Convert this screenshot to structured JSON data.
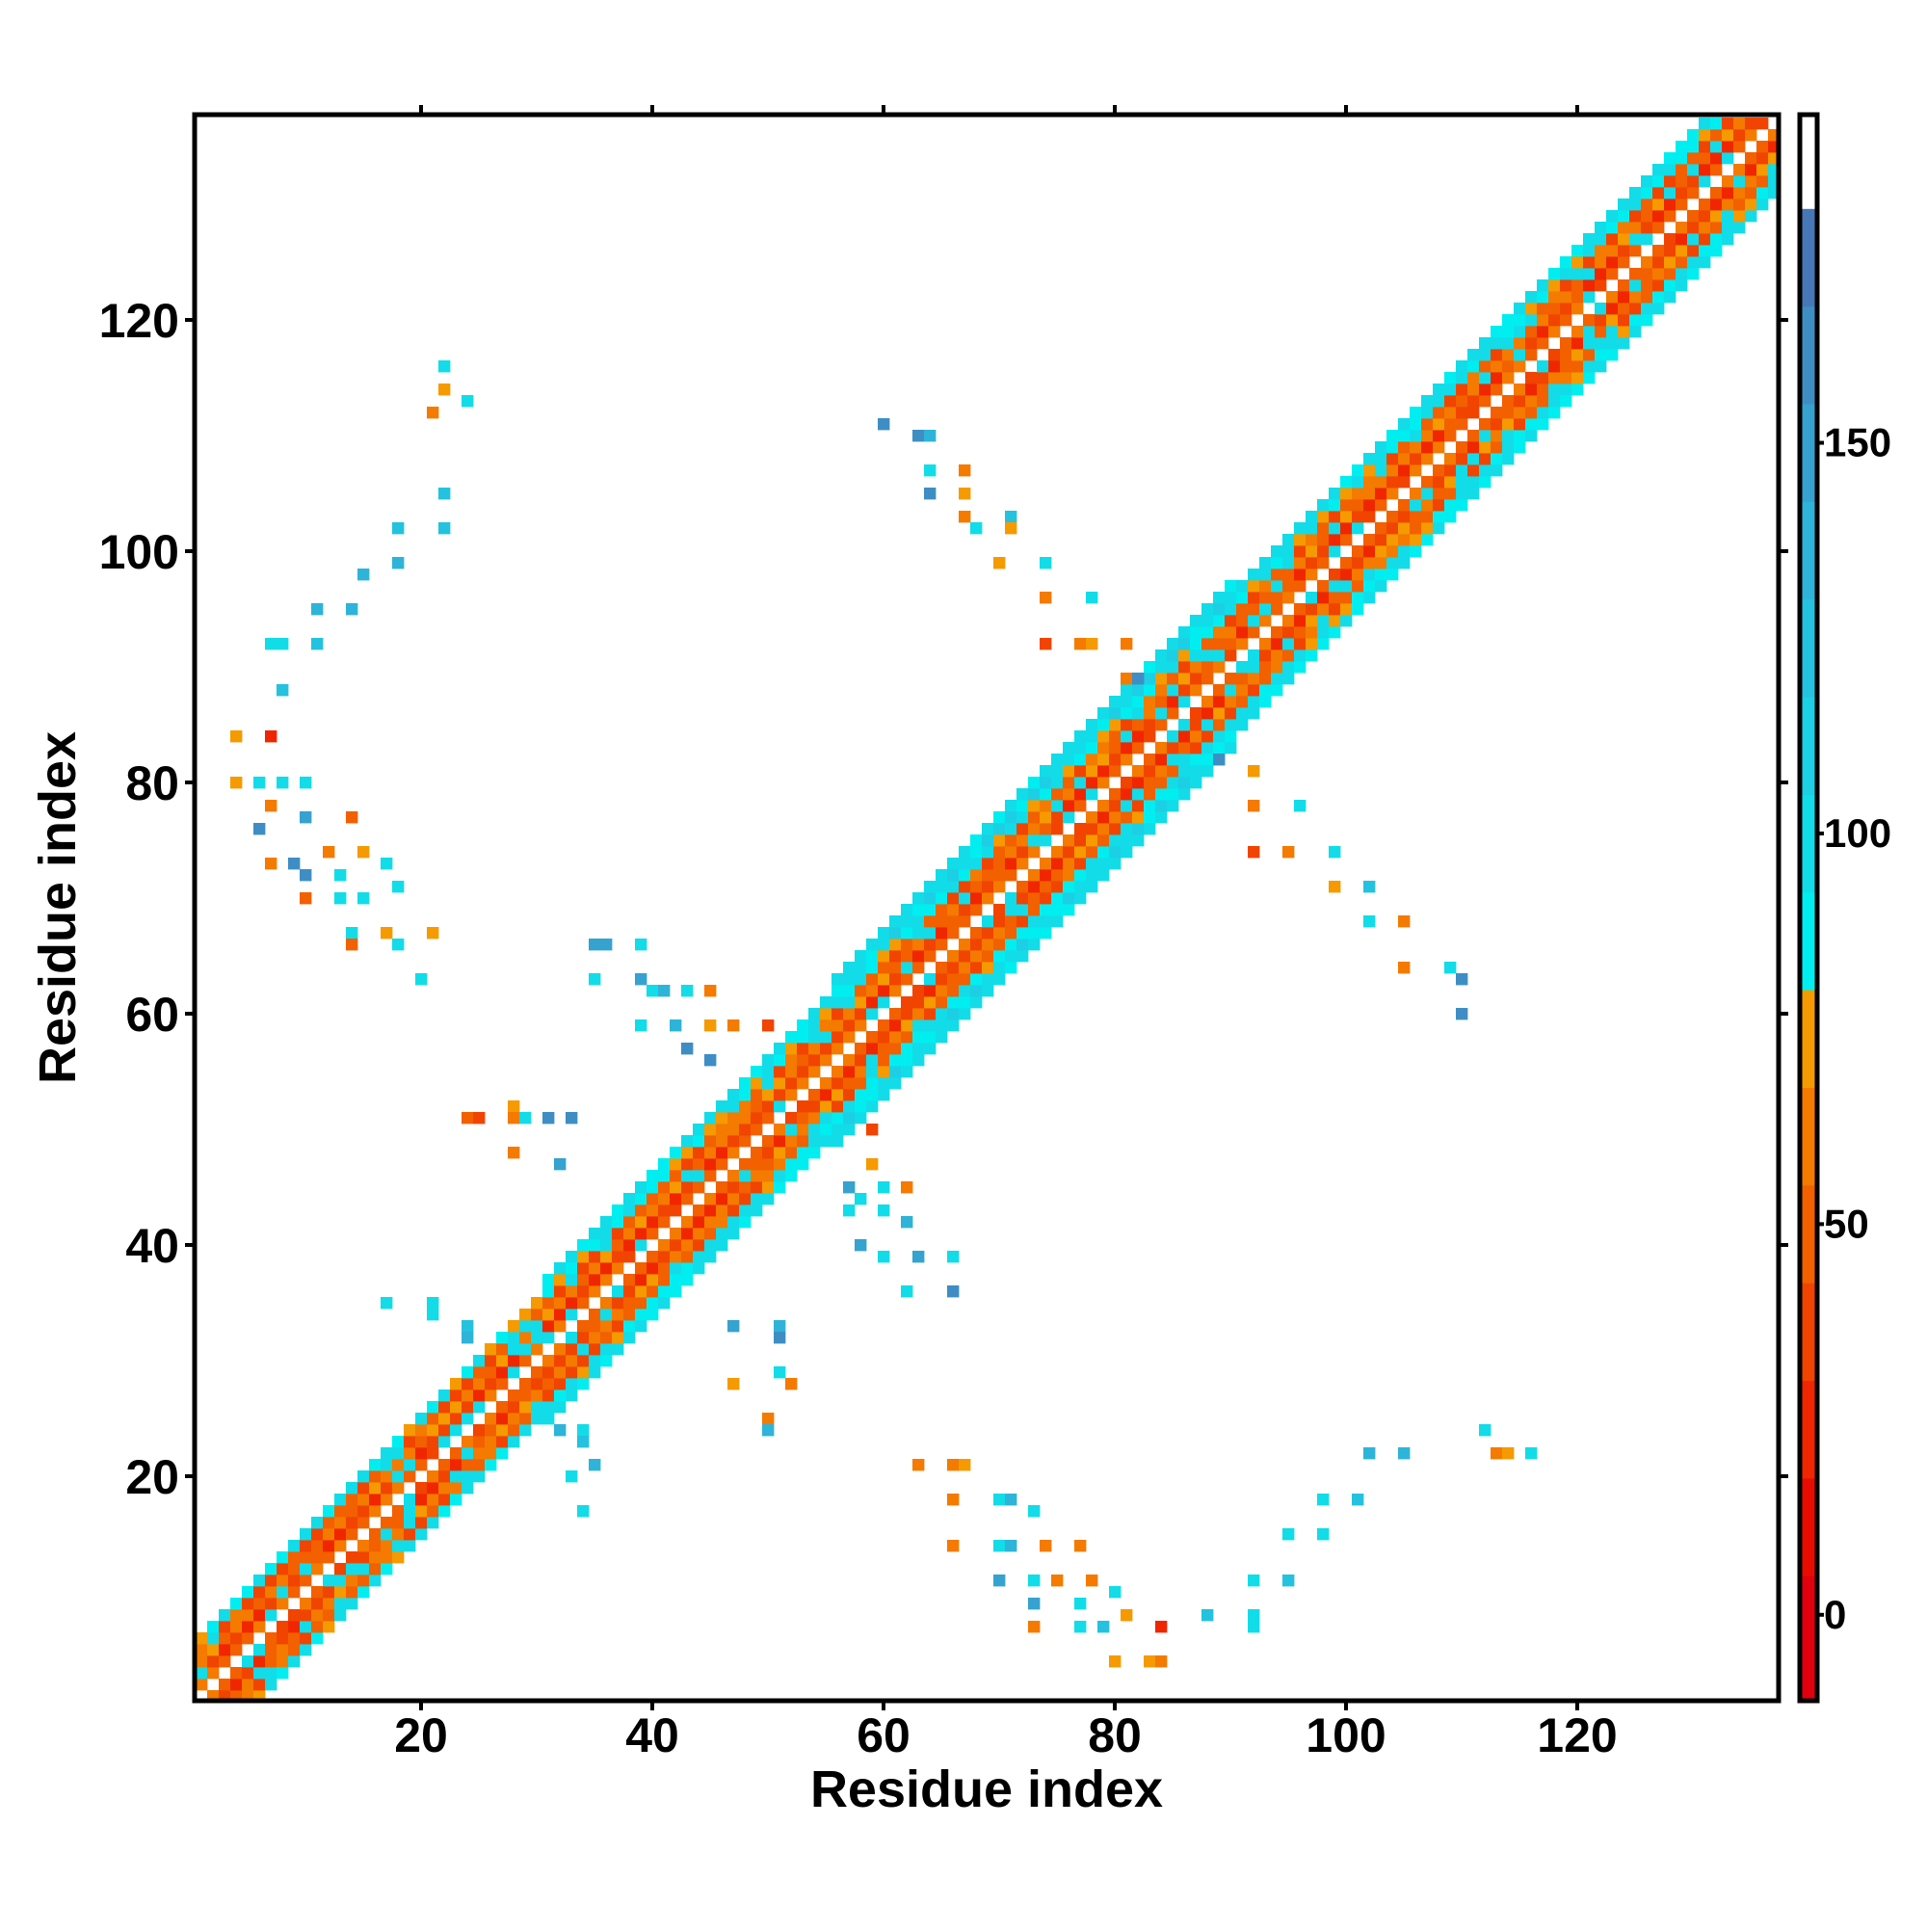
{
  "chart_data": {
    "type": "heatmap",
    "title": "",
    "xlabel": "Residue index",
    "ylabel": "Residue index",
    "xlim": [
      0.5,
      137.5
    ],
    "ylim": [
      0.5,
      137.5
    ],
    "xticks": [
      20,
      40,
      60,
      80,
      100,
      120
    ],
    "yticks": [
      20,
      40,
      60,
      80,
      100,
      120
    ],
    "grid": false,
    "colorbar": {
      "range": [
        -11,
        192
      ],
      "ticks": [
        0,
        50,
        100,
        150
      ],
      "levels": [
        {
          "from": -11,
          "to": 5,
          "color": "#e0000e"
        },
        {
          "from": 5,
          "to": 17.5,
          "color": "#e80c00"
        },
        {
          "from": 17.5,
          "to": 30,
          "color": "#f02600"
        },
        {
          "from": 30,
          "to": 42.5,
          "color": "#f04400"
        },
        {
          "from": 42.5,
          "to": 55,
          "color": "#f26000"
        },
        {
          "from": 55,
          "to": 67.5,
          "color": "#f47a00"
        },
        {
          "from": 67.5,
          "to": 80,
          "color": "#f59a00"
        },
        {
          "from": 80,
          "to": 92.5,
          "color": "#00eef0"
        },
        {
          "from": 92.5,
          "to": 105,
          "color": "#12dce8"
        },
        {
          "from": 105,
          "to": 117.5,
          "color": "#1ccfe4"
        },
        {
          "from": 117.5,
          "to": 130,
          "color": "#24c2de"
        },
        {
          "from": 130,
          "to": 142.5,
          "color": "#2eb4d8"
        },
        {
          "from": 142.5,
          "to": 155,
          "color": "#36a2cf"
        },
        {
          "from": 155,
          "to": 167.5,
          "color": "#3e8ec4"
        },
        {
          "from": 167.5,
          "to": 180,
          "color": "#4678b8"
        },
        {
          "from": 180,
          "to": 192,
          "color": "#ffffff"
        }
      ]
    },
    "diagonal_band": {
      "offset_values": [
        null,
        55,
        35,
        62,
        48,
        90,
        98,
        104
      ],
      "width_segments": [
        [
          1,
          30,
          5
        ],
        [
          31,
          55,
          6
        ],
        [
          56,
          90,
          7
        ],
        [
          91,
          137,
          6
        ]
      ]
    },
    "contacts": [
      [
        4,
        84,
        70
      ],
      [
        4,
        80,
        72
      ],
      [
        7,
        84,
        20
      ],
      [
        6,
        80,
        95
      ],
      [
        8,
        80,
        100
      ],
      [
        10,
        80,
        95
      ],
      [
        7,
        78,
        60
      ],
      [
        10,
        77,
        150
      ],
      [
        14,
        77,
        45
      ],
      [
        6,
        76,
        160
      ],
      [
        7,
        73,
        55
      ],
      [
        9,
        73,
        160
      ],
      [
        12,
        74,
        60
      ],
      [
        15,
        74,
        70
      ],
      [
        17,
        73,
        95
      ],
      [
        10,
        72,
        160
      ],
      [
        13,
        72,
        98
      ],
      [
        10,
        70,
        50
      ],
      [
        13,
        70,
        100
      ],
      [
        15,
        70,
        95
      ],
      [
        18,
        71,
        98
      ],
      [
        14,
        67,
        95
      ],
      [
        17,
        67,
        70
      ],
      [
        18,
        66,
        95
      ],
      [
        21,
        67,
        70
      ],
      [
        20,
        63,
        95
      ],
      [
        14,
        66,
        45
      ],
      [
        22,
        116,
        100
      ],
      [
        22,
        114,
        70
      ],
      [
        21,
        112,
        60
      ],
      [
        24,
        113,
        100
      ],
      [
        22,
        105,
        120
      ],
      [
        22,
        102,
        120
      ],
      [
        18,
        102,
        120
      ],
      [
        18,
        99,
        130
      ],
      [
        15,
        98,
        130
      ],
      [
        11,
        95,
        130
      ],
      [
        14,
        95,
        130
      ],
      [
        7,
        92,
        95
      ],
      [
        8,
        92,
        100
      ],
      [
        11,
        92,
        120
      ],
      [
        8,
        88,
        120
      ],
      [
        24,
        51,
        50
      ],
      [
        25,
        51,
        30
      ],
      [
        28,
        52,
        70
      ],
      [
        28,
        51,
        60
      ],
      [
        29,
        51,
        95
      ],
      [
        31,
        51,
        160
      ],
      [
        33,
        51,
        160
      ],
      [
        28,
        48,
        55
      ],
      [
        32,
        47,
        150
      ],
      [
        35,
        66,
        150
      ],
      [
        36,
        66,
        150
      ],
      [
        39,
        66,
        100
      ],
      [
        35,
        63,
        95
      ],
      [
        39,
        63,
        150
      ],
      [
        40,
        62,
        100
      ],
      [
        41,
        62,
        130
      ],
      [
        43,
        62,
        100
      ],
      [
        45,
        62,
        55
      ],
      [
        39,
        59,
        100
      ],
      [
        42,
        59,
        130
      ],
      [
        45,
        59,
        70
      ],
      [
        47,
        59,
        60
      ],
      [
        50,
        59,
        30
      ],
      [
        43,
        57,
        160
      ],
      [
        45,
        56,
        160
      ],
      [
        59,
        50,
        30
      ],
      [
        59,
        47,
        70
      ],
      [
        57,
        45,
        150
      ],
      [
        60,
        45,
        95
      ],
      [
        62,
        45,
        55
      ],
      [
        57,
        43,
        95
      ],
      [
        58,
        44,
        95
      ],
      [
        60,
        43,
        100
      ],
      [
        62,
        42,
        130
      ],
      [
        58,
        40,
        150
      ],
      [
        60,
        39,
        95
      ],
      [
        63,
        39,
        150
      ],
      [
        66,
        39,
        100
      ],
      [
        62,
        36,
        95
      ],
      [
        66,
        36,
        160
      ],
      [
        47,
        33,
        150
      ],
      [
        51,
        33,
        130
      ],
      [
        51,
        32,
        160
      ],
      [
        47,
        28,
        70
      ],
      [
        51,
        29,
        100
      ],
      [
        52,
        28,
        60
      ],
      [
        50,
        25,
        55
      ],
      [
        50,
        24,
        130
      ],
      [
        17,
        35,
        95
      ],
      [
        21,
        35,
        95
      ],
      [
        21,
        34,
        100
      ],
      [
        24,
        33,
        120
      ],
      [
        24,
        32,
        130
      ],
      [
        32,
        24,
        130
      ],
      [
        34,
        24,
        95
      ],
      [
        34,
        23,
        120
      ],
      [
        35,
        21,
        130
      ],
      [
        33,
        20,
        95
      ],
      [
        34,
        17,
        95
      ],
      [
        63,
        21,
        55
      ],
      [
        66,
        21,
        55
      ],
      [
        67,
        21,
        70
      ],
      [
        66,
        18,
        60
      ],
      [
        70,
        18,
        100
      ],
      [
        71,
        18,
        130
      ],
      [
        73,
        17,
        100
      ],
      [
        66,
        14,
        55
      ],
      [
        70,
        14,
        100
      ],
      [
        71,
        14,
        130
      ],
      [
        74,
        14,
        60
      ],
      [
        77,
        14,
        55
      ],
      [
        70,
        11,
        150
      ],
      [
        73,
        11,
        100
      ],
      [
        75,
        11,
        60
      ],
      [
        78,
        11,
        55
      ],
      [
        73,
        9,
        150
      ],
      [
        77,
        9,
        100
      ],
      [
        80,
        10,
        95
      ],
      [
        73,
        7,
        55
      ],
      [
        77,
        7,
        95
      ],
      [
        79,
        7,
        120
      ],
      [
        81,
        8,
        70
      ],
      [
        84,
        7,
        20
      ],
      [
        80,
        4,
        70
      ],
      [
        83,
        4,
        70
      ],
      [
        84,
        4,
        60
      ],
      [
        88,
        8,
        120
      ],
      [
        92,
        8,
        100
      ],
      [
        92,
        7,
        95
      ],
      [
        92,
        11,
        100
      ],
      [
        95,
        11,
        120
      ],
      [
        95,
        15,
        100
      ],
      [
        98,
        15,
        95
      ],
      [
        98,
        18,
        100
      ],
      [
        101,
        18,
        120
      ],
      [
        102,
        22,
        130
      ],
      [
        105,
        22,
        130
      ],
      [
        112,
        24,
        95
      ],
      [
        113,
        22,
        55
      ],
      [
        114,
        22,
        70
      ],
      [
        116,
        22,
        100
      ],
      [
        89,
        82,
        160
      ],
      [
        92,
        81,
        70
      ],
      [
        92,
        78,
        55
      ],
      [
        96,
        78,
        95
      ],
      [
        92,
        74,
        30
      ],
      [
        95,
        74,
        60
      ],
      [
        99,
        74,
        100
      ],
      [
        99,
        71,
        70
      ],
      [
        102,
        71,
        120
      ],
      [
        102,
        68,
        95
      ],
      [
        105,
        68,
        55
      ],
      [
        105,
        64,
        55
      ],
      [
        109,
        64,
        95
      ],
      [
        110,
        63,
        160
      ],
      [
        110,
        60,
        160
      ],
      [
        60,
        111,
        160
      ],
      [
        63,
        110,
        160
      ],
      [
        64,
        110,
        130
      ],
      [
        64,
        107,
        95
      ],
      [
        67,
        107,
        55
      ],
      [
        64,
        105,
        160
      ],
      [
        67,
        105,
        70
      ],
      [
        67,
        103,
        55
      ],
      [
        68,
        102,
        100
      ],
      [
        71,
        103,
        120
      ],
      [
        71,
        102,
        70
      ],
      [
        70,
        99,
        70
      ],
      [
        74,
        99,
        100
      ],
      [
        74,
        96,
        60
      ],
      [
        78,
        96,
        95
      ],
      [
        74,
        92,
        30
      ],
      [
        77,
        92,
        55
      ],
      [
        78,
        92,
        70
      ],
      [
        81,
        92,
        60
      ],
      [
        81,
        89,
        60
      ],
      [
        82,
        89,
        160
      ]
    ]
  }
}
